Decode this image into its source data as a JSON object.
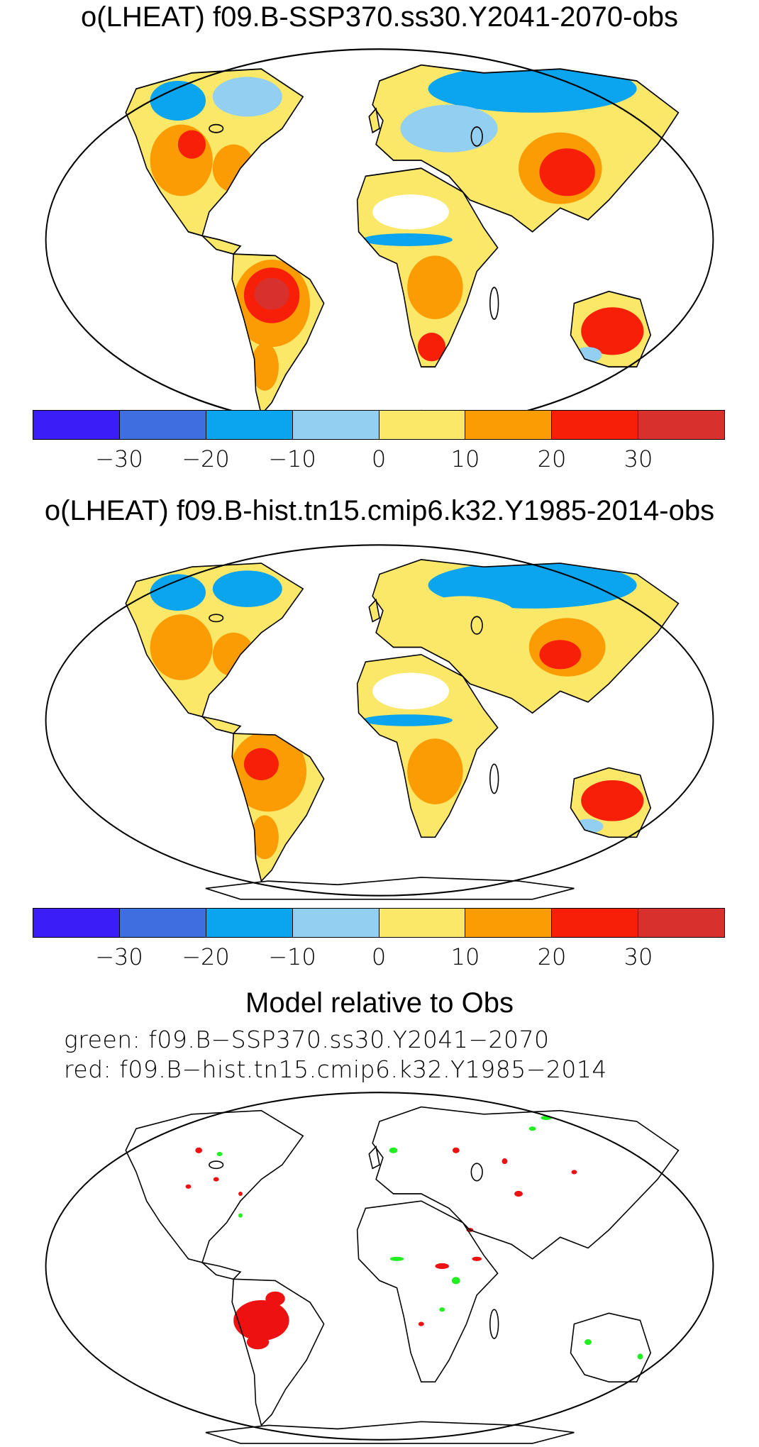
{
  "panels": [
    {
      "title": "o(LHEAT) f09.B-SSP370.ss30.Y2041-2070-obs"
    },
    {
      "title": "o(LHEAT) f09.B-hist.tn15.cmip6.k32.Y1985-2014-obs"
    }
  ],
  "colorbar": {
    "colors": [
      "#3a1ef5",
      "#3f6ee0",
      "#0aa4ef",
      "#92cff0",
      "#fbe868",
      "#fb9c05",
      "#f81f08",
      "#d8302d"
    ],
    "ticks": [
      "−30",
      "−20",
      "−10",
      "0",
      "10",
      "20",
      "30"
    ]
  },
  "comparison": {
    "title": "Model relative to Obs",
    "line1": "green: f09.B−SSP370.ss30.Y2041−2070",
    "line2": "red: f09.B−hist.tn15.cmip6.k32.Y1985−2014",
    "green_color": "#22ee22",
    "red_color": "#ee1111"
  }
}
